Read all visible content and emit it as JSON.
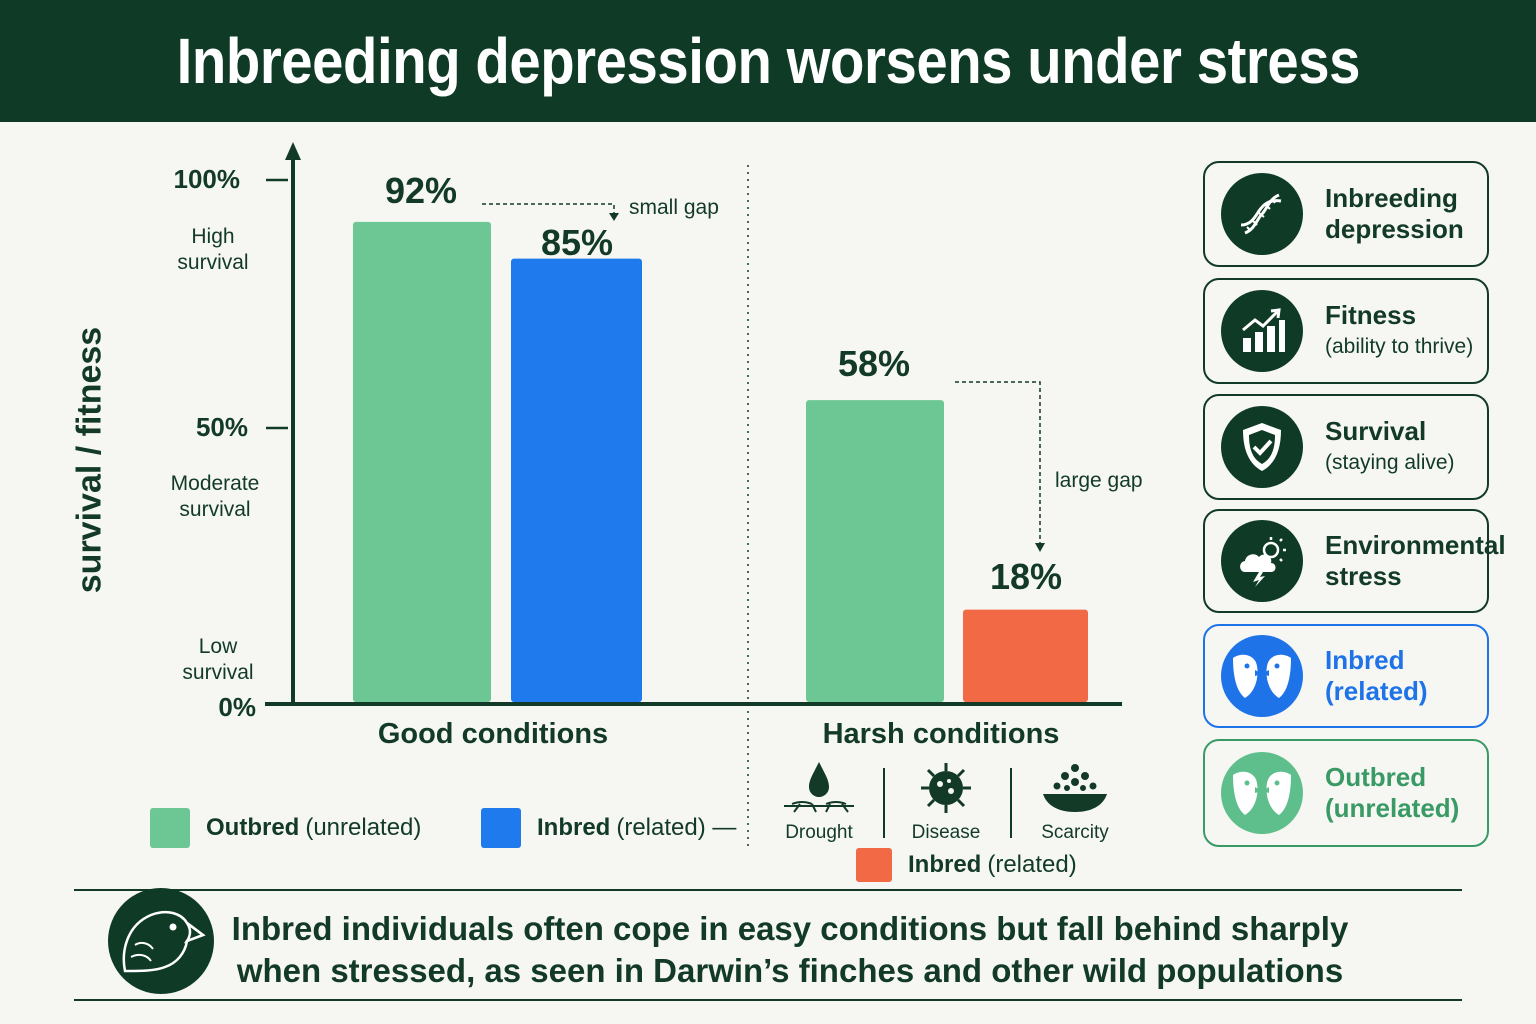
{
  "title": "Inbreeding depression worsens under stress",
  "chart_data": {
    "type": "bar",
    "ylabel": "survival / fitness",
    "ylim": [
      0,
      100
    ],
    "yticks": [
      {
        "value": 0,
        "label": "0%"
      },
      {
        "value": 50,
        "label": "50%"
      },
      {
        "value": 100,
        "label": "100%"
      }
    ],
    "zones": [
      {
        "label": "High survival"
      },
      {
        "label": "Moderate survival"
      },
      {
        "label": "Low survival"
      }
    ],
    "groups": [
      {
        "name": "Good conditions",
        "bars": [
          {
            "series": "Outbred",
            "value": 92,
            "label": "92%",
            "color": "#6cc795"
          },
          {
            "series": "Inbred",
            "value": 85,
            "label": "85%",
            "color": "#1f7aee"
          }
        ],
        "gap_note": "small gap"
      },
      {
        "name": "Harsh conditions",
        "bars": [
          {
            "series": "Outbred",
            "value": 58,
            "label": "58%",
            "color": "#6cc795"
          },
          {
            "series": "Inbred",
            "value": 18,
            "label": "18%",
            "color": "#f26a45"
          }
        ],
        "gap_note": "large gap"
      }
    ],
    "grid": false
  },
  "legend": [
    {
      "bold": "Outbred",
      "rest": "(unrelated)",
      "color": "#6cc795"
    },
    {
      "bold": "Inbred",
      "rest": "(related) —",
      "color": "#1f7aee"
    },
    {
      "bold": "Inbred",
      "rest": "(related)",
      "color": "#f26a45"
    }
  ],
  "stressors": [
    {
      "label": "Drought",
      "icon": "drought-icon"
    },
    {
      "label": "Disease",
      "icon": "virus-icon"
    },
    {
      "label": "Scarcity",
      "icon": "food-bowl-icon"
    }
  ],
  "cards": [
    {
      "line1": "Inbreeding",
      "line2": "depression",
      "icon": "dna-icon"
    },
    {
      "line1": "Fitness",
      "line2": "(ability to thrive)",
      "icon": "growth-chart-icon"
    },
    {
      "line1": "Survival",
      "line2": "(staying alive)",
      "icon": "shield-check-icon"
    },
    {
      "line1": "Environmental",
      "line2": "stress",
      "icon": "storm-cloud-icon"
    },
    {
      "line1": "Inbred",
      "line2": "(related)",
      "icon": "birds-icon"
    },
    {
      "line1": "Outbred",
      "line2": "(unrelated)",
      "icon": "birds-icon"
    }
  ],
  "footer": {
    "line1": "Inbred individuals often cope in easy conditions but fall behind sharply",
    "line2": "when stressed, as seen in Darwin’s finches and other wild populations",
    "icon": "finch-icon"
  }
}
